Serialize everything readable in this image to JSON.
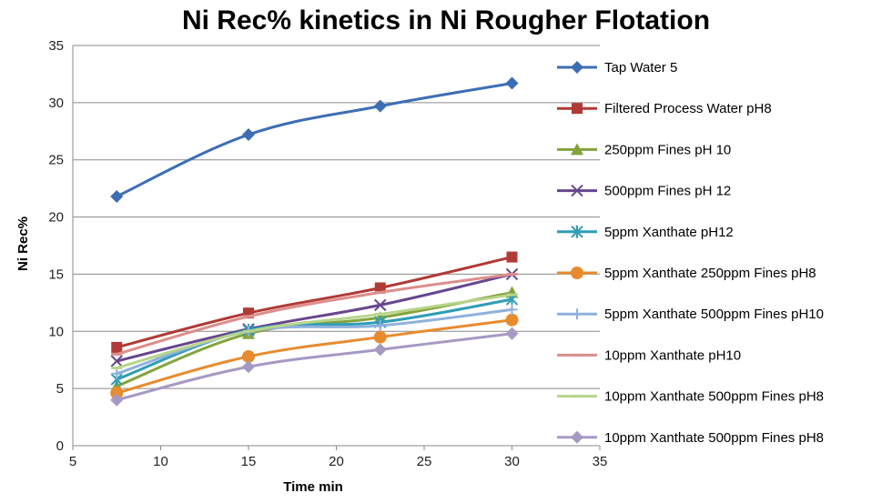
{
  "chart_data": {
    "type": "line",
    "title": "Ni Rec% kinetics in Ni Rougher Flotation",
    "xlabel": "Time min",
    "ylabel": "Ni Rec%",
    "xlim": [
      5,
      35
    ],
    "ylim": [
      0,
      35
    ],
    "xticks": [
      "5",
      "10",
      "15",
      "20",
      "25",
      "30",
      "35"
    ],
    "yticks": [
      "0",
      "5",
      "10",
      "15",
      "20",
      "25",
      "30",
      "35"
    ],
    "grid": "horizontal",
    "legend_position": "right",
    "x": [
      7.5,
      15,
      22.5,
      30
    ],
    "series": [
      {
        "name": "Tap Water 5",
        "color": "#3d6eb4",
        "marker": "diamond",
        "values": [
          21.8,
          27.2,
          29.7,
          31.7
        ]
      },
      {
        "name": "Filtered Process Water pH8",
        "color": "#b03a35",
        "marker": "square",
        "values": [
          8.6,
          11.6,
          13.8,
          16.5
        ]
      },
      {
        "name": "250ppm Fines pH 10",
        "color": "#83a33c",
        "marker": "triangle",
        "values": [
          5.2,
          9.8,
          11.2,
          13.4
        ]
      },
      {
        "name": "500ppm Fines pH 12",
        "color": "#67468f",
        "marker": "x",
        "values": [
          7.4,
          10.2,
          12.3,
          15.0
        ]
      },
      {
        "name": "5ppm Xanthate pH12",
        "color": "#2f9db6",
        "marker": "star",
        "values": [
          5.8,
          10.1,
          10.8,
          12.8
        ]
      },
      {
        "name": "5ppm Xanthate 250ppm Fines pH8",
        "color": "#e88b2e",
        "marker": "circle",
        "values": [
          4.6,
          7.8,
          9.5,
          11.0
        ]
      },
      {
        "name": "5ppm Xanthate 500ppm Fines pH10",
        "color": "#8fb1de",
        "marker": "plus",
        "values": [
          6.3,
          10.0,
          10.5,
          11.9
        ]
      },
      {
        "name": "10ppm Xanthate pH10",
        "color": "#dc8e8b",
        "marker": "dash",
        "values": [
          8.0,
          11.3,
          13.4,
          15.0
        ]
      },
      {
        "name": "10ppm Xanthate 500ppm Fines pH8",
        "color": "#b7d58a",
        "marker": "dash",
        "values": [
          6.8,
          10.0,
          11.5,
          13.2
        ]
      },
      {
        "name": "10ppm Xanthate 500ppm Fines pH8",
        "color": "#a599c4",
        "marker": "diamond",
        "values": [
          4.0,
          6.9,
          8.4,
          9.8
        ]
      }
    ]
  }
}
